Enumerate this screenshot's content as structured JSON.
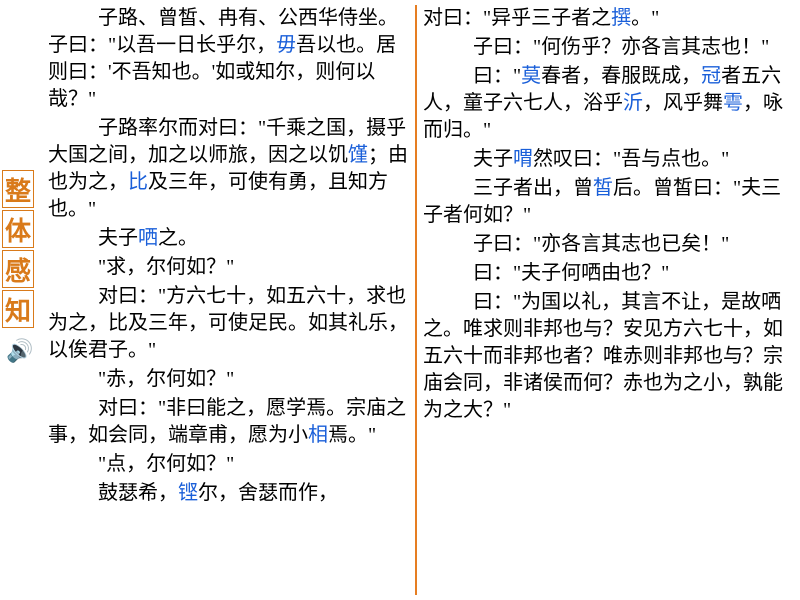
{
  "sidebar": {
    "title_chars": [
      "整",
      "体",
      "感",
      "知"
    ],
    "speaker_icon": "🔊"
  },
  "left": {
    "p1a": "子路、曾皙、冉有、公西华侍坐。子曰：\"以吾一日长乎尔，",
    "p1b": "毋",
    "p1c": "吾以也。居则曰：'不吾知也。'如或知尔，则何以哉？\"",
    "p2a": "子路率尔而对曰：\"千乘之国，摄乎大国之间，加之以师旅，因之以饥",
    "p2b": "馑",
    "p2c": "；由也为之，",
    "p2d": "比",
    "p2e": "及三年，可使有勇，且知方也。\"",
    "p3a": "夫子",
    "p3b": "哂",
    "p3c": "之。",
    "p4": "\"求，尔何如？\"",
    "p5": "对曰：\"方六七十，如五六十，求也为之，比及三年，可使足民。如其礼乐，以俟君子。\"",
    "p6": "\"赤，尔何如？\"",
    "p7a": "对曰：\"非曰能之，愿学焉。宗庙之事，如会同，端章甫，愿为小",
    "p7b": "相",
    "p7c": "焉。\"",
    "p8": "\"点，尔何如？\"",
    "p9a": "鼓瑟希，",
    "p9b": "铿",
    "p9c": "尔，舍瑟而作，"
  },
  "right": {
    "p1a": "对曰：\"异乎三子者之",
    "p1b": "撰",
    "p1c": "。\"",
    "p2": "子曰：\"何伤乎？亦各言其志也！\"",
    "p3a": "曰：\"",
    "p3b": "莫",
    "p3c": "春者，春服既成，",
    "p3d": "冠",
    "p3e": "者五六人，童子六七人，浴乎",
    "p3f": "沂",
    "p3g": "，风乎舞",
    "p3h": "雩",
    "p3i": "，咏而归。\"",
    "p4a": "夫子",
    "p4b": "喟",
    "p4c": "然叹曰：\"吾与点也。\"",
    "p5a": "三子者出，曾",
    "p5b": "皙",
    "p5c": "后。曾皙曰：\"夫三子者何如？\"",
    "p6": "子曰：\"亦各言其志也已矣！\"",
    "p7": "曰：\"夫子何哂由也？\"",
    "p8": "曰：\"为国以礼，其言不让，是故哂之。唯求则非邦也与？安见方六七十，如五六十而非邦也者？唯赤则非邦也与？宗庙会同，非诸侯而何？赤也为之小，孰能为之大？\""
  },
  "colors": {
    "highlight": "#1a5fd9",
    "accent": "#d97a1a",
    "divider": "#e67e22",
    "text": "#000000",
    "background": "#ffffff"
  },
  "fonts": {
    "body_size": 20,
    "sidebar_size": 26,
    "line_height": 1.35
  }
}
